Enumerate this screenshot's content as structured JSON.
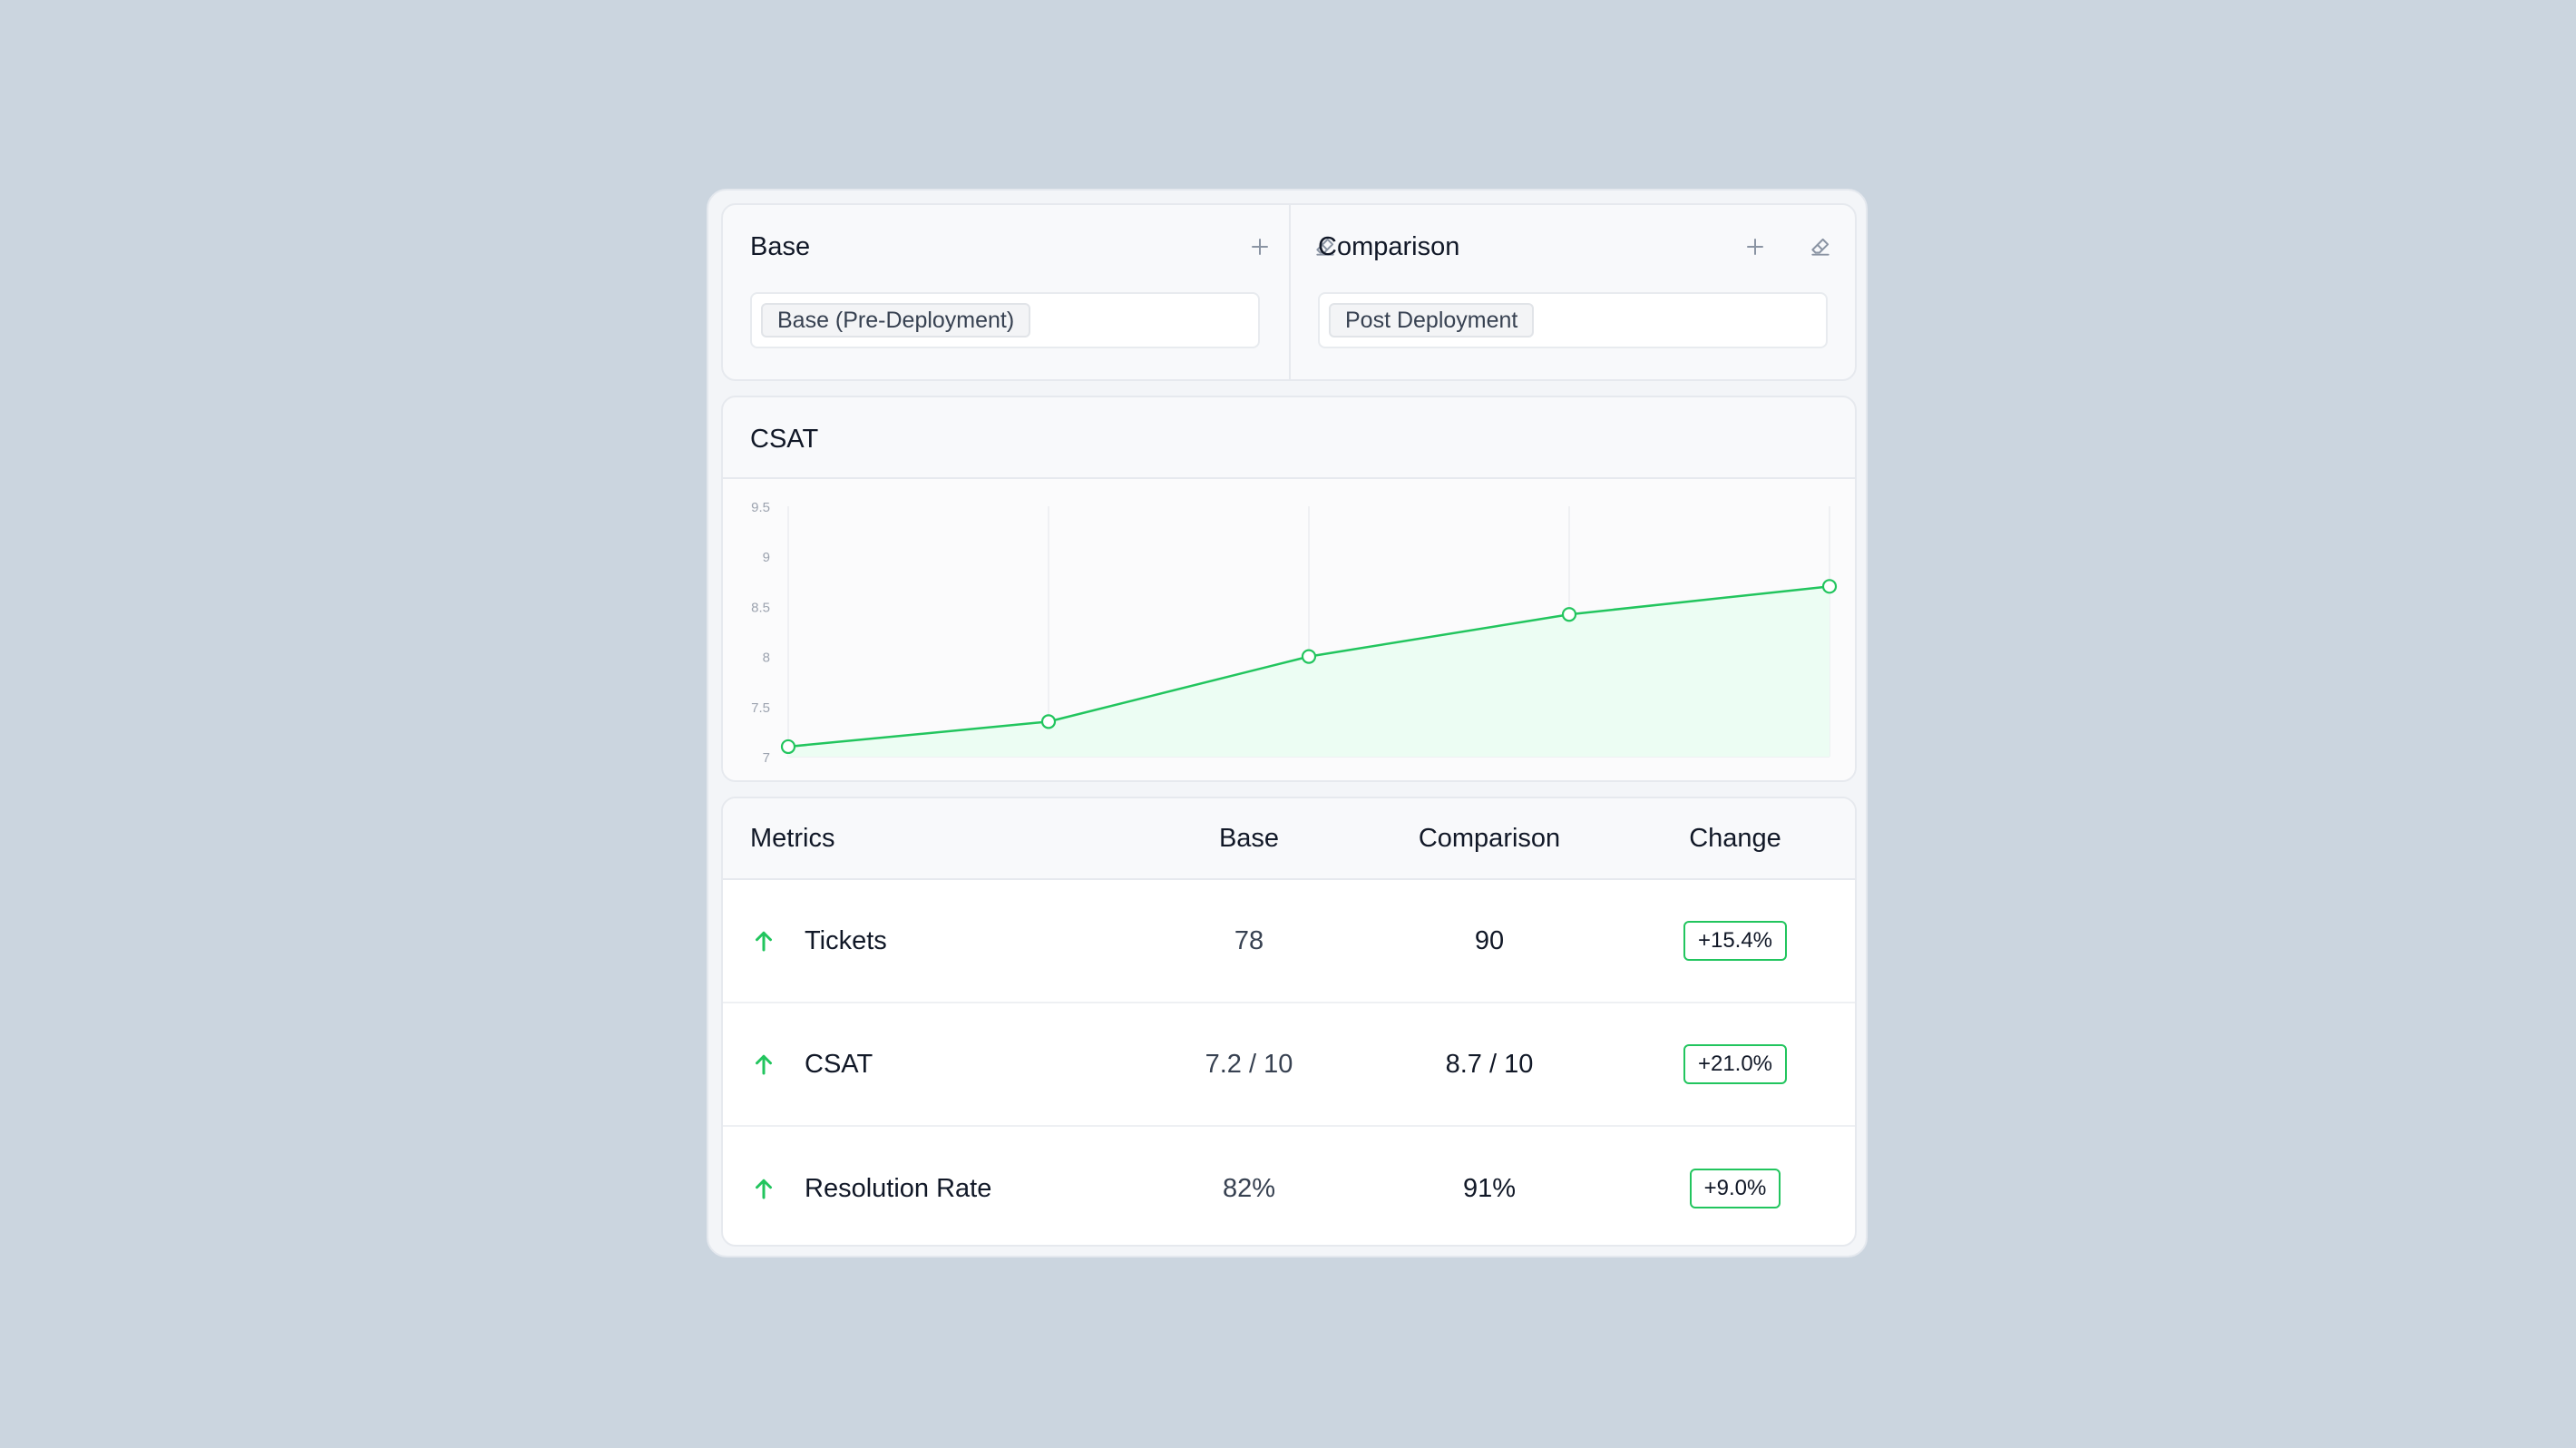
{
  "colors": {
    "accent": "#22c55e",
    "area_fill": "#ecfdf3",
    "background": "#cbd5df"
  },
  "selectors": {
    "base": {
      "title": "Base",
      "chip": "Base (Pre-Deployment)"
    },
    "comparison": {
      "title": "Comparison",
      "chip": "Post Deployment"
    },
    "add_icon": "plus-icon",
    "clear_icon": "eraser-icon"
  },
  "chart": {
    "title": "CSAT"
  },
  "chart_data": {
    "type": "area",
    "title": "CSAT",
    "xlabel": "",
    "ylabel": "",
    "x": [
      1,
      2,
      3,
      4,
      5
    ],
    "values": [
      7.1,
      7.35,
      8.0,
      8.42,
      8.7
    ],
    "ylim": [
      7,
      9.5
    ],
    "yticks": [
      "9.5",
      "9",
      "8.5",
      "8",
      "7.5",
      "7"
    ],
    "grid": "vertical",
    "legend": "none"
  },
  "metrics": {
    "headers": {
      "metric": "Metrics",
      "base": "Base",
      "comparison": "Comparison",
      "change": "Change"
    },
    "rows": [
      {
        "name": "Tickets",
        "base": "78",
        "comparison": "90",
        "change": "+15.4%",
        "trend_icon": "arrow-up-icon"
      },
      {
        "name": "CSAT",
        "base": "7.2 / 10",
        "comparison": "8.7 / 10",
        "change": "+21.0%",
        "trend_icon": "arrow-up-icon"
      },
      {
        "name": "Resolution Rate",
        "base": "82%",
        "comparison": "91%",
        "change": "+9.0%",
        "trend_icon": "arrow-up-icon"
      }
    ]
  }
}
